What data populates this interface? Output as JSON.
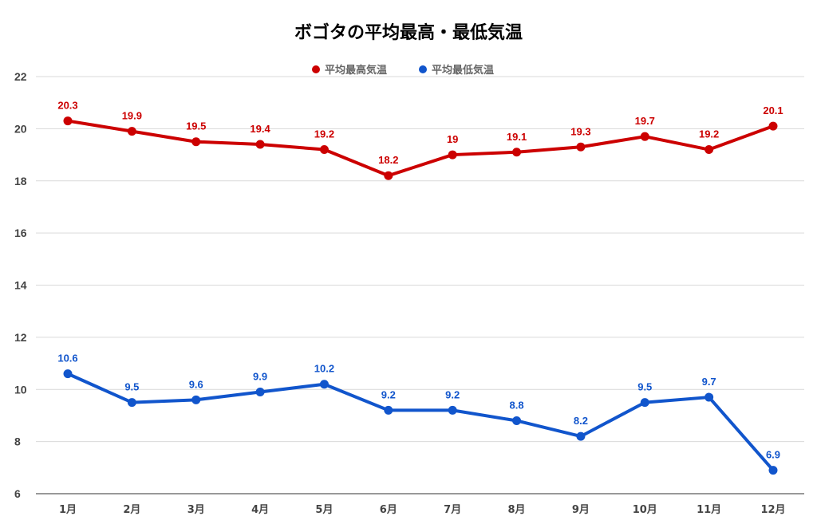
{
  "chart_data": {
    "type": "line",
    "title": "ボゴタの平均最高・最低気温",
    "categories": [
      "1月",
      "2月",
      "3月",
      "4月",
      "5月",
      "6月",
      "7月",
      "8月",
      "9月",
      "10月",
      "11月",
      "12月"
    ],
    "series": [
      {
        "name": "平均最高気温",
        "color": "#cc0000",
        "values": [
          20.3,
          19.9,
          19.5,
          19.4,
          19.2,
          18.2,
          19,
          19.1,
          19.3,
          19.7,
          19.2,
          20.1
        ],
        "labels": [
          "20.3",
          "19.9",
          "19.5",
          "19.4",
          "19.2",
          "18.2",
          "19",
          "19.1",
          "19.3",
          "19.7",
          "19.2",
          "20.1"
        ]
      },
      {
        "name": "平均最低気温",
        "color": "#1155cc",
        "values": [
          10.6,
          9.5,
          9.6,
          9.9,
          10.2,
          9.2,
          9.2,
          8.8,
          8.2,
          9.5,
          9.7,
          6.9
        ],
        "labels": [
          "10.6",
          "9.5",
          "9.6",
          "9.9",
          "10.2",
          "9.2",
          "9.2",
          "8.8",
          "8.2",
          "9.5",
          "9.7",
          "6.9"
        ]
      }
    ],
    "ylim": [
      6,
      22
    ],
    "yticks": [
      "6",
      "8",
      "10",
      "12",
      "14",
      "16",
      "18",
      "20",
      "22"
    ],
    "grid": true,
    "legend_position": "top-center",
    "xlabel": "",
    "ylabel": ""
  }
}
